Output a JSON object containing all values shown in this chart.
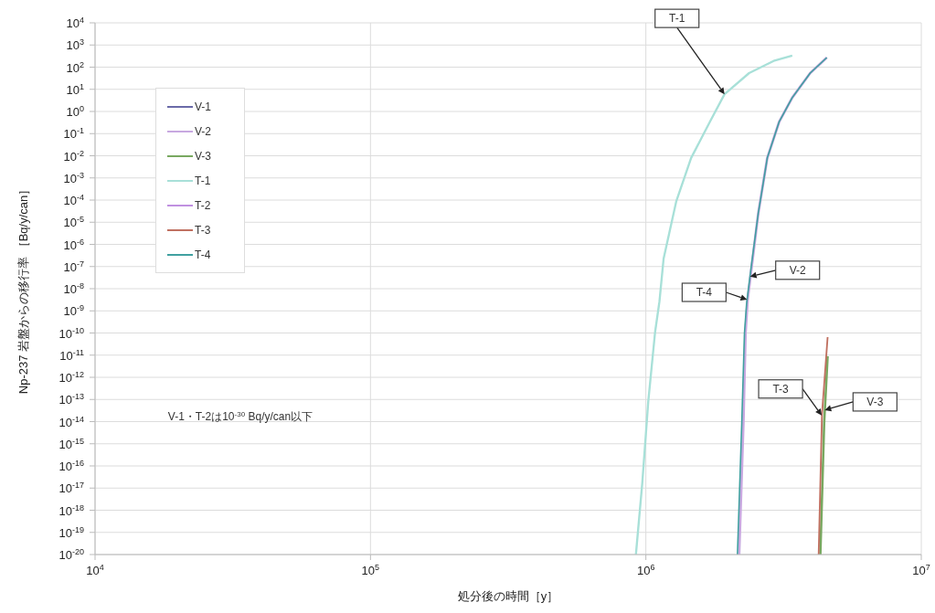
{
  "chart_data": {
    "type": "line",
    "xlabel": "処分後の時間［y］",
    "ylabel": "Np-237 岩盤からの移行率 ［Bq/y/can］",
    "log": "xy",
    "grid": true,
    "legend": "top left",
    "marker": "none",
    "line_style": "solid",
    "xlim": [
      10000,
      10000000
    ],
    "xticks": [
      {
        "value": 10000,
        "label": "10$^{4}$"
      },
      {
        "value": 100000,
        "label": "10$^{5}$"
      },
      {
        "value": 1000000,
        "label": "10$^{6}$"
      },
      {
        "value": 10000000,
        "label": "10$^{7}$"
      }
    ],
    "ylim": [
      1e-20,
      10000
    ],
    "yticks": [
      {
        "value": 1e-20,
        "label": "10$^{-20}$"
      },
      {
        "value": 1e-19,
        "label": "10$^{-19}$"
      },
      {
        "value": 1e-18,
        "label": "10$^{-18}$"
      },
      {
        "value": 1e-17,
        "label": "10$^{-17}$"
      },
      {
        "value": 1e-16,
        "label": "10$^{-16}$"
      },
      {
        "value": 1e-15,
        "label": "10$^{-15}$"
      },
      {
        "value": 1e-14,
        "label": "10$^{-14}$"
      },
      {
        "value": 1e-13,
        "label": "10$^{-13}$"
      },
      {
        "value": 1e-12,
        "label": "10$^{-12}$"
      },
      {
        "value": 1e-11,
        "label": "10$^{-11}$"
      },
      {
        "value": 1e-10,
        "label": "10$^{-10}$"
      },
      {
        "value": 1e-09,
        "label": "10$^{-9}$"
      },
      {
        "value": 1e-08,
        "label": "10$^{-8}$"
      },
      {
        "value": 1e-07,
        "label": "10$^{-7}$"
      },
      {
        "value": 1e-06,
        "label": "10$^{-6}$"
      },
      {
        "value": 1e-05,
        "label": "10$^{-5}$"
      },
      {
        "value": 0.0001,
        "label": "10$^{-4}$"
      },
      {
        "value": 0.001,
        "label": "10$^{-3}$"
      },
      {
        "value": 0.01,
        "label": "10$^{-2}$"
      },
      {
        "value": 0.1,
        "label": "10$^{-1}$"
      },
      {
        "value": 1,
        "label": "10$^{0}$"
      },
      {
        "value": 10,
        "label": "10$^{1}$"
      },
      {
        "value": 100,
        "label": "10$^{2}$"
      },
      {
        "value": 1000,
        "label": "10$^{3}$"
      },
      {
        "value": 10000,
        "label": "10$^{4}$"
      }
    ],
    "series": [
      {
        "name": "V-1",
        "color": "#6a6aa8"
      },
      {
        "name": "V-2",
        "color": "#c8a8e0",
        "x": [
          2180000,
          2260000,
          2300000,
          2340000,
          2420000,
          2560000,
          2760000,
          3050000,
          3400000,
          3950000,
          4540000
        ],
        "values": [
          1e-20,
          1e-14,
          1e-10,
          3e-09,
          9e-08,
          2.6e-05,
          0.008,
          0.35,
          4.2,
          54,
          270
        ]
      },
      {
        "name": "V-3",
        "color": "#78a860",
        "x": [
          4300000,
          4440000,
          4570000
        ],
        "values": [
          1e-20,
          9e-15,
          9e-12
        ]
      },
      {
        "name": "T-1",
        "color": "#a8e0d8",
        "x": [
          920000,
          970000,
          1020000,
          1080000,
          1120000,
          1160000,
          1290000,
          1460000,
          1710000,
          1930000,
          2370000,
          2910000,
          3400000
        ],
        "values": [
          1e-20,
          1.6e-17,
          8e-14,
          1.1e-10,
          2.6e-09,
          2.3e-07,
          9e-05,
          0.008,
          0.35,
          6,
          54,
          190,
          330
        ]
      },
      {
        "name": "T-2",
        "color": "#c090e0"
      },
      {
        "name": "T-3",
        "color": "#c07060",
        "x": [
          4240000,
          4360000,
          4570000
        ],
        "values": [
          1e-20,
          2.2e-14,
          6.5e-11
        ]
      },
      {
        "name": "T-4",
        "color": "#40a0a0",
        "x": [
          2150000,
          2230000,
          2280000,
          2320000,
          2410000,
          2560000,
          2760000,
          3050000,
          3400000,
          3950000,
          4540000
        ],
        "values": [
          1e-20,
          1e-14,
          1e-10,
          2e-09,
          9e-08,
          2.6e-05,
          0.008,
          0.35,
          4.2,
          54,
          270
        ]
      }
    ],
    "annotations": [
      "V-1・T-2は10$^{-30}$Bq/y/can以下",
      {
        "text": "T-1",
        "x": 1930000,
        "y": 6
      },
      {
        "text": "V-2",
        "x": 2390000,
        "y": 3.5e-08
      },
      {
        "text": "T-4",
        "x": 2330000,
        "y": 3.2e-09
      },
      {
        "text": "T-3",
        "x": 4350000,
        "y": 1.9e-14
      },
      {
        "text": "V-3",
        "x": 4460000,
        "y": 3.3e-14
      }
    ]
  }
}
